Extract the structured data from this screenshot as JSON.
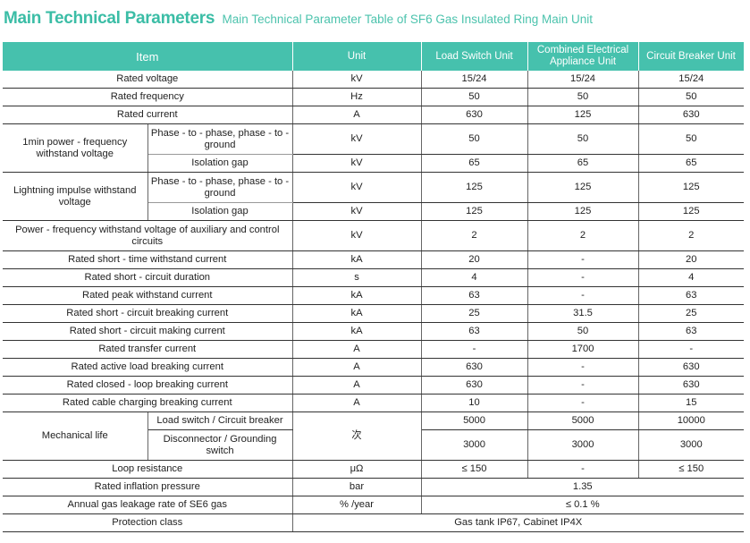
{
  "title": "Main Technical Parameters",
  "subtitle": "Main Technical Parameter Table of SF6 Gas Insulated Ring Main Unit",
  "header": {
    "item": "Item",
    "unit": "Unit",
    "load": "Load Switch Unit",
    "combined": "Combined Electrical Appliance Unit",
    "breaker": "Circuit Breaker Unit"
  },
  "accent_color": "#46c1ad",
  "rows": {
    "r1": [
      "Rated voltage",
      "kV",
      "15/24",
      "15/24",
      "15/24"
    ],
    "r2": [
      "Rated frequency",
      "Hz",
      "50",
      "50",
      "50"
    ],
    "r3": [
      "Rated current",
      "A",
      "630",
      "125",
      "630"
    ],
    "r4": [
      "1min power - frequency withstand voltage",
      "Phase - to - phase, phase - to - ground",
      "kV",
      "50",
      "50",
      "50"
    ],
    "r5": [
      "Isolation gap",
      "kV",
      "65",
      "65",
      "65"
    ],
    "r6": [
      "Lightning impulse withstand voltage",
      "Phase - to - phase, phase - to - ground",
      "kV",
      "125",
      "125",
      "125"
    ],
    "r7": [
      "Isolation gap",
      "kV",
      "125",
      "125",
      "125"
    ],
    "r8": [
      "Power - frequency withstand voltage of auxiliary and control circuits",
      "kV",
      "2",
      "2",
      "2"
    ],
    "r9": [
      "Rated short - time withstand current",
      "kA",
      "20",
      "-",
      "20"
    ],
    "r10": [
      "Rated short - circuit duration",
      "s",
      "4",
      "-",
      "4"
    ],
    "r11": [
      "Rated peak withstand current",
      "kA",
      "63",
      "-",
      "63"
    ],
    "r12": [
      "Rated short - circuit breaking current",
      "kA",
      "25",
      "31.5",
      "25"
    ],
    "r13": [
      "Rated short - circuit making current",
      "kA",
      "63",
      "50",
      "63"
    ],
    "r14": [
      "Rated transfer current",
      "A",
      "-",
      "1700",
      "-"
    ],
    "r15": [
      "Rated active load breaking current",
      "A",
      "630",
      "-",
      "630"
    ],
    "r16": [
      "Rated closed - loop breaking current",
      "A",
      "630",
      "-",
      "630"
    ],
    "r17": [
      "Rated cable charging breaking current",
      "A",
      "10",
      "-",
      "15"
    ],
    "r18": [
      "Mechanical life",
      "Load switch / Circuit breaker",
      "次",
      "5000",
      "5000",
      "10000"
    ],
    "r19": [
      "Disconnector / Grounding switch",
      "3000",
      "3000",
      "3000"
    ],
    "r20": [
      "Loop resistance",
      "μΩ",
      "≤ 150",
      "-",
      "≤ 150"
    ],
    "r21": [
      "Rated inflation pressure",
      "bar",
      "1.35"
    ],
    "r22": [
      "Annual gas leakage rate of SE6 gas",
      "% /year",
      "≤ 0.1 %"
    ],
    "r23": [
      "Protection class",
      "Gas tank IP67, Cabinet IP4X"
    ]
  }
}
